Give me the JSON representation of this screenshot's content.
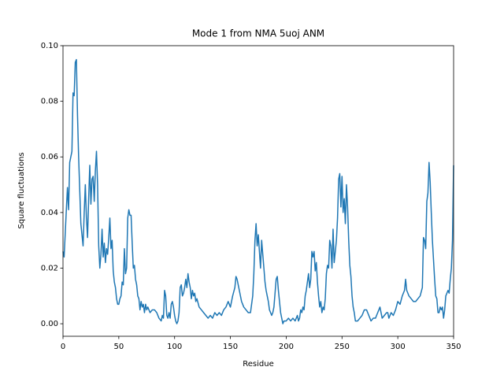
{
  "chart_data": {
    "type": "line",
    "title": "Mode 1 from NMA 5uoj ANM",
    "x_label": "Residue",
    "y_label": "Square fluctuations",
    "color": "#1f77b4",
    "x": [
      0,
      1,
      3,
      4,
      5,
      6,
      8,
      9,
      10,
      11,
      12,
      13,
      14,
      15,
      16,
      18,
      19,
      20,
      21,
      22,
      23,
      24,
      25,
      26,
      27,
      28,
      29,
      30,
      31,
      32,
      33,
      34,
      35,
      36,
      37,
      38,
      39,
      40,
      41,
      42,
      43,
      44,
      45,
      46,
      47,
      48,
      49,
      50,
      51,
      52,
      53,
      54,
      55,
      56,
      57,
      58,
      59,
      60,
      61,
      62,
      63,
      64,
      65,
      66,
      67,
      68,
      69,
      70,
      71,
      72,
      73,
      74,
      75,
      76,
      78,
      80,
      82,
      84,
      86,
      88,
      89,
      90,
      91,
      92,
      93,
      94,
      95,
      96,
      97,
      98,
      99,
      100,
      101,
      102,
      103,
      104,
      105,
      106,
      107,
      108,
      109,
      110,
      111,
      112,
      113,
      114,
      115,
      116,
      117,
      118,
      119,
      120,
      122,
      124,
      126,
      128,
      130,
      132,
      134,
      136,
      138,
      140,
      142,
      144,
      146,
      148,
      150,
      152,
      154,
      155,
      156,
      158,
      160,
      162,
      164,
      166,
      168,
      170,
      171,
      172,
      173,
      174,
      175,
      176,
      177,
      178,
      179,
      180,
      181,
      182,
      183,
      184,
      185,
      186,
      187,
      188,
      189,
      190,
      191,
      192,
      193,
      194,
      195,
      196,
      197,
      198,
      200,
      202,
      204,
      206,
      208,
      210,
      211,
      212,
      213,
      214,
      215,
      216,
      217,
      218,
      219,
      220,
      221,
      222,
      223,
      224,
      225,
      226,
      227,
      228,
      229,
      230,
      231,
      232,
      233,
      234,
      235,
      236,
      237,
      238,
      239,
      240,
      241,
      242,
      243,
      244,
      245,
      246,
      247,
      248,
      249,
      250,
      251,
      252,
      253,
      254,
      255,
      256,
      257,
      258,
      259,
      260,
      261,
      262,
      264,
      266,
      268,
      270,
      272,
      274,
      276,
      278,
      280,
      282,
      284,
      286,
      288,
      290,
      291,
      292,
      294,
      296,
      298,
      300,
      302,
      304,
      306,
      307,
      308,
      309,
      310,
      312,
      314,
      316,
      318,
      320,
      322,
      323,
      324,
      325,
      326,
      327,
      328,
      329,
      330,
      331,
      332,
      333,
      334,
      335,
      336,
      337,
      338,
      339,
      340,
      341,
      342,
      343,
      344,
      345,
      346,
      347,
      348,
      349,
      350
    ],
    "values": [
      0.026,
      0.024,
      0.041,
      0.049,
      0.041,
      0.058,
      0.062,
      0.083,
      0.082,
      0.094,
      0.095,
      0.075,
      0.06,
      0.048,
      0.036,
      0.028,
      0.04,
      0.05,
      0.038,
      0.031,
      0.045,
      0.057,
      0.043,
      0.052,
      0.053,
      0.044,
      0.055,
      0.062,
      0.05,
      0.028,
      0.02,
      0.025,
      0.034,
      0.024,
      0.029,
      0.022,
      0.027,
      0.025,
      0.031,
      0.038,
      0.027,
      0.03,
      0.019,
      0.015,
      0.013,
      0.009,
      0.007,
      0.007,
      0.009,
      0.01,
      0.015,
      0.014,
      0.027,
      0.018,
      0.02,
      0.038,
      0.041,
      0.039,
      0.039,
      0.029,
      0.02,
      0.021,
      0.016,
      0.014,
      0.01,
      0.009,
      0.005,
      0.008,
      0.006,
      0.007,
      0.004,
      0.007,
      0.005,
      0.006,
      0.004,
      0.005,
      0.005,
      0.004,
      0.002,
      0.001,
      0.003,
      0.002,
      0.012,
      0.01,
      0.003,
      0.002,
      0.004,
      0.002,
      0.007,
      0.008,
      0.006,
      0.003,
      0.001,
      0.0,
      0.001,
      0.004,
      0.013,
      0.014,
      0.01,
      0.011,
      0.013,
      0.016,
      0.013,
      0.018,
      0.015,
      0.013,
      0.009,
      0.012,
      0.01,
      0.011,
      0.008,
      0.009,
      0.006,
      0.005,
      0.004,
      0.003,
      0.002,
      0.003,
      0.002,
      0.004,
      0.003,
      0.004,
      0.003,
      0.005,
      0.006,
      0.008,
      0.006,
      0.01,
      0.013,
      0.017,
      0.016,
      0.012,
      0.008,
      0.006,
      0.005,
      0.004,
      0.004,
      0.01,
      0.018,
      0.03,
      0.036,
      0.028,
      0.032,
      0.026,
      0.02,
      0.03,
      0.025,
      0.02,
      0.015,
      0.012,
      0.01,
      0.008,
      0.005,
      0.004,
      0.003,
      0.004,
      0.006,
      0.011,
      0.016,
      0.017,
      0.012,
      0.008,
      0.004,
      0.002,
      0.0,
      0.001,
      0.001,
      0.002,
      0.001,
      0.002,
      0.001,
      0.003,
      0.001,
      0.002,
      0.005,
      0.004,
      0.006,
      0.005,
      0.01,
      0.012,
      0.015,
      0.018,
      0.013,
      0.016,
      0.026,
      0.024,
      0.026,
      0.019,
      0.022,
      0.015,
      0.01,
      0.006,
      0.008,
      0.004,
      0.006,
      0.005,
      0.009,
      0.018,
      0.021,
      0.02,
      0.03,
      0.028,
      0.02,
      0.034,
      0.022,
      0.026,
      0.03,
      0.038,
      0.052,
      0.054,
      0.042,
      0.053,
      0.04,
      0.045,
      0.036,
      0.05,
      0.042,
      0.03,
      0.021,
      0.017,
      0.01,
      0.006,
      0.004,
      0.001,
      0.001,
      0.002,
      0.003,
      0.005,
      0.005,
      0.003,
      0.001,
      0.002,
      0.002,
      0.004,
      0.006,
      0.002,
      0.003,
      0.004,
      0.004,
      0.002,
      0.004,
      0.003,
      0.005,
      0.008,
      0.007,
      0.01,
      0.012,
      0.016,
      0.012,
      0.011,
      0.01,
      0.009,
      0.008,
      0.008,
      0.009,
      0.01,
      0.013,
      0.031,
      0.03,
      0.027,
      0.044,
      0.047,
      0.058,
      0.051,
      0.04,
      0.03,
      0.023,
      0.016,
      0.01,
      0.009,
      0.004,
      0.004,
      0.006,
      0.005,
      0.006,
      0.002,
      0.005,
      0.01,
      0.011,
      0.012,
      0.011,
      0.016,
      0.02,
      0.03,
      0.057
    ],
    "xlim": [
      0,
      350
    ],
    "xticks": [
      0,
      50,
      100,
      150,
      200,
      250,
      300,
      350
    ],
    "ylim": [
      -0.0045,
      0.1
    ],
    "yticks": [
      {
        "value": 0,
        "label": "0.00"
      },
      {
        "value": 0.02,
        "label": "0.02"
      },
      {
        "value": 0.04,
        "label": "0.04"
      },
      {
        "value": 0.06,
        "label": "0.06"
      },
      {
        "value": 0.08,
        "label": "0.08"
      },
      {
        "value": 0.1,
        "label": "0.10"
      }
    ]
  }
}
